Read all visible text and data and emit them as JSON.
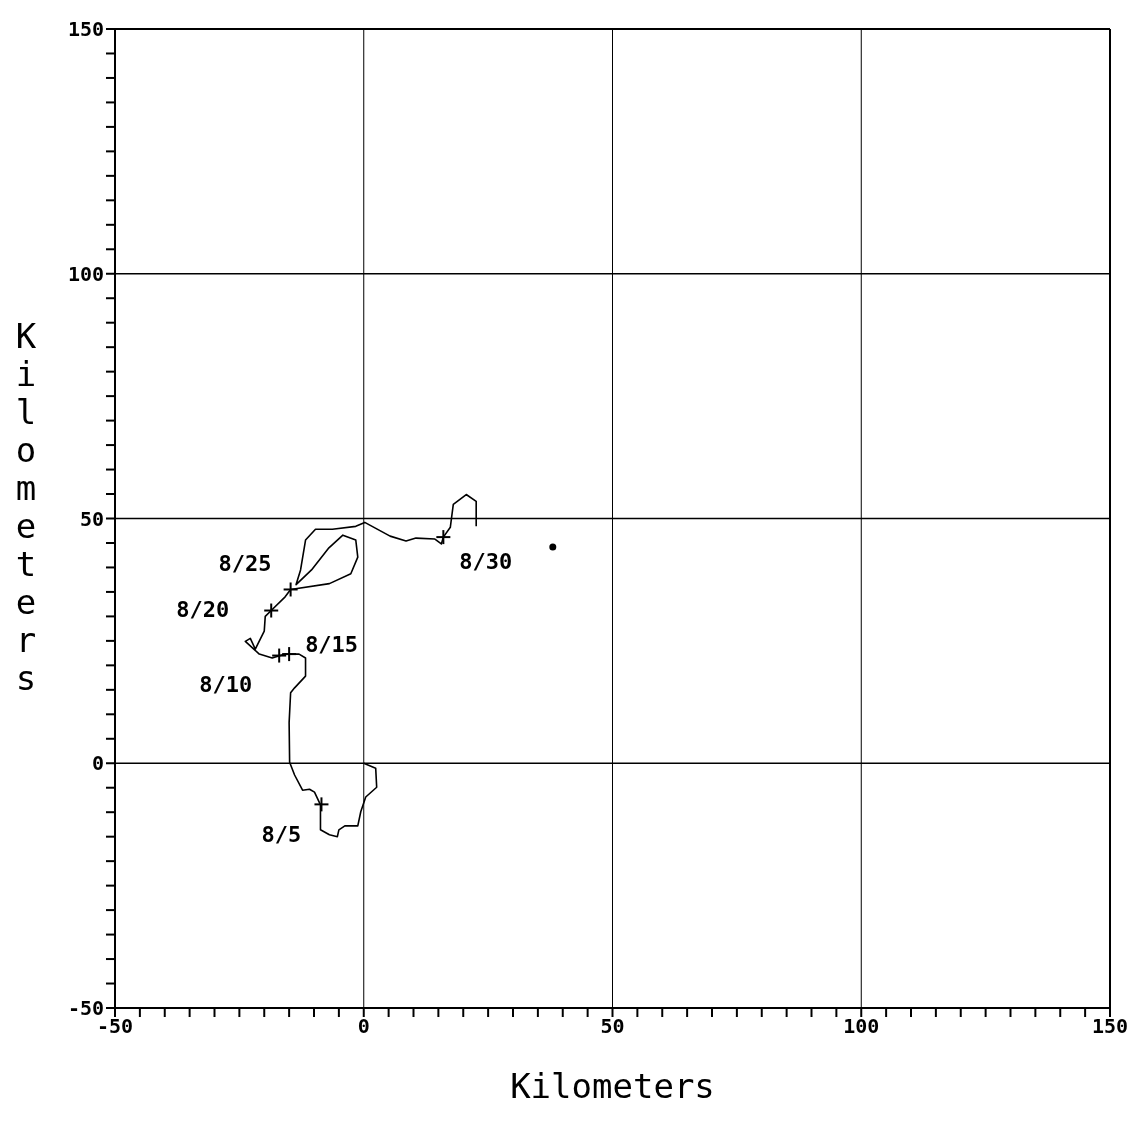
{
  "chart_data": {
    "type": "line",
    "xlabel": "Kilometers",
    "ylabel": "Kilometers",
    "xlim": [
      -50,
      150
    ],
    "ylim": [
      -50,
      150
    ],
    "xticks": [
      -50,
      {
        "value": -45,
        "label": null
      },
      {
        "value": -40,
        "label": null
      },
      {
        "value": -35,
        "label": null
      },
      {
        "value": -30,
        "label": null
      },
      {
        "value": -25,
        "label": null
      },
      {
        "value": -20,
        "label": null
      },
      {
        "value": -15,
        "label": null
      },
      {
        "value": -10,
        "label": null
      },
      {
        "value": -5,
        "label": null
      },
      0,
      {
        "value": 5,
        "label": null
      },
      {
        "value": 10,
        "label": null
      },
      {
        "value": 15,
        "label": null
      },
      {
        "value": 20,
        "label": null
      },
      {
        "value": 25,
        "label": null
      },
      {
        "value": 30,
        "label": null
      },
      {
        "value": 35,
        "label": null
      },
      {
        "value": 40,
        "label": null
      },
      {
        "value": 45,
        "label": null
      },
      50,
      {
        "value": 55,
        "label": null
      },
      {
        "value": 60,
        "label": null
      },
      {
        "value": 65,
        "label": null
      },
      {
        "value": 70,
        "label": null
      },
      {
        "value": 75,
        "label": null
      },
      {
        "value": 80,
        "label": null
      },
      {
        "value": 85,
        "label": null
      },
      {
        "value": 90,
        "label": null
      },
      {
        "value": 95,
        "label": null
      },
      100,
      {
        "value": 105,
        "label": null
      },
      {
        "value": 110,
        "label": null
      },
      {
        "value": 115,
        "label": null
      },
      {
        "value": 120,
        "label": null
      },
      {
        "value": 125,
        "label": null
      },
      {
        "value": 130,
        "label": null
      },
      {
        "value": 135,
        "label": null
      },
      {
        "value": 140,
        "label": null
      },
      {
        "value": 145,
        "label": null
      },
      150
    ],
    "yticks": [
      -50,
      {
        "value": -45,
        "label": null
      },
      {
        "value": -40,
        "label": null
      },
      {
        "value": -35,
        "label": null
      },
      {
        "value": -30,
        "label": null
      },
      {
        "value": -25,
        "label": null
      },
      {
        "value": -20,
        "label": null
      },
      {
        "value": -15,
        "label": null
      },
      {
        "value": -10,
        "label": null
      },
      {
        "value": -5,
        "label": null
      },
      0,
      {
        "value": 5,
        "label": null
      },
      {
        "value": 10,
        "label": null
      },
      {
        "value": 15,
        "label": null
      },
      {
        "value": 20,
        "label": null
      },
      {
        "value": 25,
        "label": null
      },
      {
        "value": 30,
        "label": null
      },
      {
        "value": 35,
        "label": null
      },
      {
        "value": 40,
        "label": null
      },
      {
        "value": 45,
        "label": null
      },
      50,
      {
        "value": 55,
        "label": null
      },
      {
        "value": 60,
        "label": null
      },
      {
        "value": 65,
        "label": null
      },
      {
        "value": 70,
        "label": null
      },
      {
        "value": 75,
        "label": null
      },
      {
        "value": 80,
        "label": null
      },
      {
        "value": 85,
        "label": null
      },
      {
        "value": 90,
        "label": null
      },
      {
        "value": 95,
        "label": null
      },
      100,
      {
        "value": 105,
        "label": null
      },
      {
        "value": 110,
        "label": null
      },
      {
        "value": 115,
        "label": null
      },
      {
        "value": 120,
        "label": null
      },
      {
        "value": 125,
        "label": null
      },
      {
        "value": 130,
        "label": null
      },
      {
        "value": 135,
        "label": null
      },
      {
        "value": 140,
        "label": null
      },
      {
        "value": 145,
        "label": null
      },
      150
    ],
    "grid": true,
    "series": [
      {
        "color": "#000000",
        "marker": "none",
        "line_style": "solid",
        "x": [
          0,
          2.4,
          2.6,
          0.4,
          -0.6,
          -1.2,
          -3.8,
          -5,
          -5.3,
          -6.9,
          -8.7,
          -8.7,
          -9.9,
          -10.9,
          -12.3,
          -13.9,
          -14.9,
          -15,
          -14.7,
          -13.9,
          -11.7,
          -11.7,
          -13,
          -15.8,
          -18.4,
          -21,
          -23.8,
          -22.8,
          -21.8,
          -20,
          -19.8,
          -18.6,
          -15.8,
          -14.7,
          -6.9,
          -2.6,
          -1.2,
          -1.6,
          -4.2,
          -7,
          -10.5,
          -13.6,
          -12.7,
          -11.7,
          -9.7,
          -6.3,
          -1.6,
          0.2,
          5.3,
          8.5,
          10.5,
          14.3,
          15.6,
          16,
          17.4,
          18,
          20.6,
          22.6,
          22.6
        ],
        "values": [
          0,
          -1,
          -4.9,
          -6.9,
          -9.9,
          -12.8,
          -12.8,
          -13.6,
          -15,
          -14.6,
          -13.6,
          -8.5,
          -5.9,
          -5.3,
          -5.5,
          -2.4,
          0.2,
          8.3,
          14.4,
          15.4,
          17.8,
          21.5,
          22.3,
          22.3,
          21.5,
          22.3,
          24.9,
          25.5,
          23.3,
          27,
          30,
          31.2,
          34,
          35.5,
          36.7,
          38.7,
          42.1,
          45.6,
          46.6,
          44,
          39.5,
          36.5,
          39.5,
          45.6,
          47.8,
          47.8,
          48.4,
          49.2,
          46.4,
          45.4,
          46,
          45.8,
          44.8,
          46.2,
          48.2,
          52.9,
          54.9,
          53.5,
          48.4
        ]
      },
      {
        "type": "scatter",
        "color": "#000000",
        "marker": "cross",
        "x": [
          -8.5,
          -17,
          -15,
          -18.6,
          -14.7,
          16
        ],
        "values": [
          -8.4,
          22,
          22.3,
          31.2,
          35.5,
          46.2
        ]
      },
      {
        "type": "scatter",
        "color": "#000000",
        "marker": "circle",
        "x": [
          38
        ],
        "values": [
          44.2
        ]
      }
    ],
    "annotations": [
      {
        "text": "8/5",
        "x": -8.5,
        "y": -8.4
      },
      {
        "text": "8/10",
        "x": -17,
        "y": 22
      },
      {
        "text": "8/15",
        "x": -15,
        "y": 22.3
      },
      {
        "text": "8/20",
        "x": -18.6,
        "y": 31.2
      },
      {
        "text": "8/25",
        "x": -14.7,
        "y": 35.5
      },
      {
        "text": "8/30",
        "x": 16,
        "y": 46.2
      }
    ]
  }
}
